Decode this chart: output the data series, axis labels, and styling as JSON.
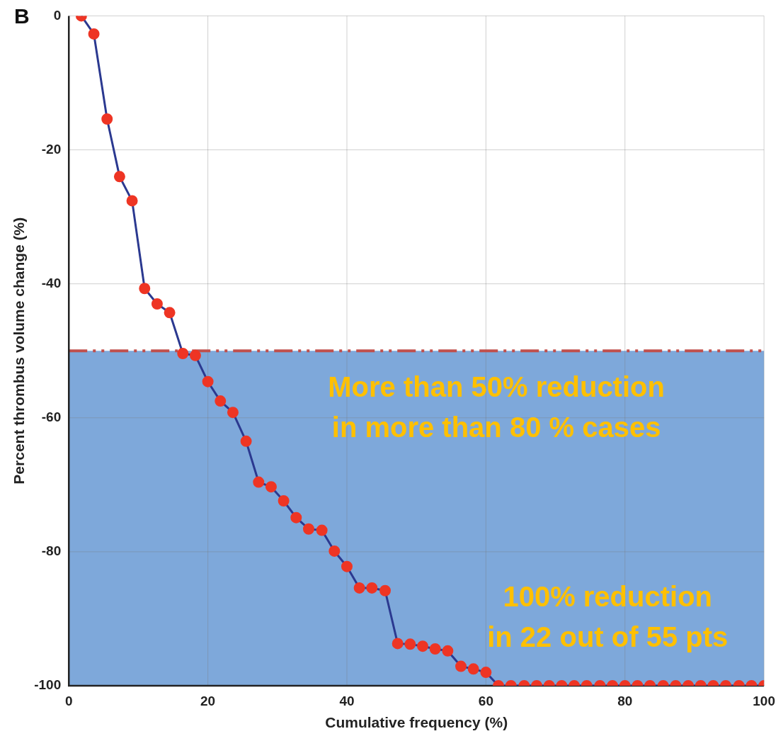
{
  "chart_data": {
    "type": "line",
    "title": "B",
    "xlabel": "Cumulative frequency (%)",
    "ylabel": "Percent thrombus volume change (%)",
    "x": [
      1.8,
      3.6,
      5.5,
      7.3,
      9.1,
      10.9,
      12.7,
      14.5,
      16.4,
      18.2,
      20,
      21.8,
      23.6,
      25.5,
      27.3,
      29.1,
      30.9,
      32.7,
      34.5,
      36.4,
      38.2,
      40,
      41.8,
      43.6,
      45.5,
      47.3,
      49.1,
      50.9,
      52.7,
      54.5,
      56.4,
      58.2,
      60,
      61.8,
      63.6,
      65.5,
      67.3,
      69.1,
      70.9,
      72.7,
      74.5,
      76.4,
      78.2,
      80,
      81.8,
      83.6,
      85.5,
      87.3,
      89.1,
      90.9,
      92.7,
      94.5,
      96.4,
      98.2,
      100
    ],
    "series": [
      {
        "color": "#2b3990",
        "colors": [
          "#ee3524",
          "#ee3524",
          "#ee3524",
          "#ee3524",
          "#ee3524",
          "#ee3524",
          "#ee3524",
          "#ee3524",
          "#ee3524",
          "#ee3524",
          "#ee3524",
          "#ee3524",
          "#ee3524",
          "#ee3524",
          "#ee3524",
          "#ee3524",
          "#ee3524",
          "#ee3524",
          "#ee3524",
          "#ee3524",
          "#ee3524",
          "#ee3524",
          "#ee3524",
          "#ee3524",
          "#ee3524",
          "#ee3524",
          "#ee3524",
          "#ee3524",
          "#ee3524",
          "#ee3524",
          "#ee3524",
          "#ee3524",
          "#ee3524",
          "#ee3524",
          "#ee3524",
          "#ee3524",
          "#ee3524",
          "#ee3524",
          "#ee3524",
          "#ee3524",
          "#ee3524",
          "#ee3524",
          "#ee3524",
          "#ee3524",
          "#ee3524",
          "#ee3524",
          "#ee3524",
          "#ee3524",
          "#ee3524",
          "#ee3524",
          "#ee3524",
          "#ee3524",
          "#ee3524",
          "#ee3524",
          "#ee3524"
        ],
        "values": [
          0,
          -2.7,
          -15.4,
          -24,
          -27.6,
          -40.7,
          -43,
          -44.3,
          -50.4,
          -50.7,
          -54.6,
          -57.5,
          -59.2,
          -63.5,
          -69.6,
          -70.3,
          -72.4,
          -74.9,
          -76.6,
          -76.8,
          -79.9,
          -82.2,
          -85.4,
          -85.4,
          -85.8,
          -93.7,
          -93.8,
          -94.1,
          -94.5,
          -94.8,
          -97.1,
          -97.5,
          -98,
          -100,
          -100,
          -100,
          -100,
          -100,
          -100,
          -100,
          -100,
          -100,
          -100,
          -100,
          -100,
          -100,
          -100,
          -100,
          -100,
          -100,
          -100,
          -100,
          -100,
          -100,
          -100
        ]
      }
    ],
    "xlim": [
      0,
      100
    ],
    "xticks": [
      0,
      20,
      40,
      60,
      80,
      100
    ],
    "ylim": [
      -100,
      0
    ],
    "yticks": [
      -100,
      -80,
      -60,
      -40,
      -20,
      0
    ],
    "bands": [
      {
        "axis": "y",
        "from": -100,
        "to": -50,
        "color": "#7ea8da"
      }
    ],
    "ref_lines": [
      {
        "axis": "y",
        "value": -50,
        "color": "#c0504d",
        "line_style": "dashdot"
      }
    ],
    "annotations": [
      "More than 50% reduction\nin more than 80 % cases",
      "100% reduction\nin 22 out of 55 pts"
    ],
    "grid": true,
    "legend": false,
    "marker": "circle",
    "line_style": "solid"
  }
}
